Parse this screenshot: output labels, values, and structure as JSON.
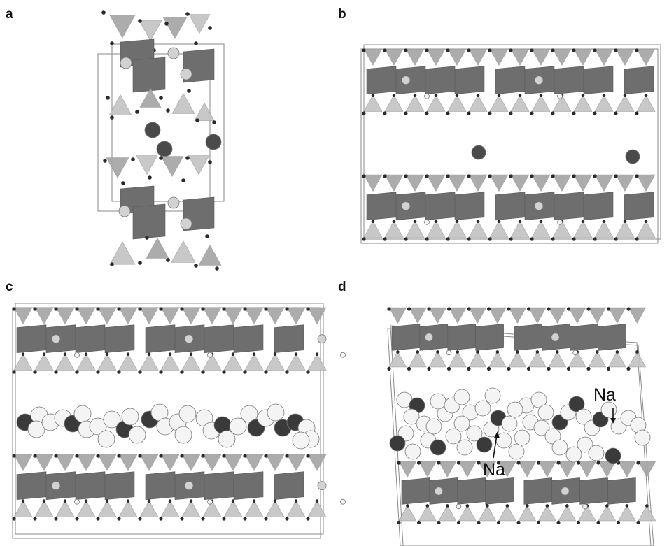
{
  "panels": {
    "a": {
      "letter": "a"
    },
    "b": {
      "letter": "b"
    },
    "c": {
      "letter": "c"
    },
    "d": {
      "letter": "d"
    }
  },
  "annotations": {
    "na_upper": "Na",
    "na_lower": "Na"
  },
  "colors": {
    "tetrahedron_light": "#c4c4c4",
    "tetrahedron_mid": "#a6a6a6",
    "octahedron": "#6e6e6e",
    "oxygen": "#2a2a2a",
    "cation_light": "#d2d2d2",
    "cation_dark": "#4a4a4a",
    "cell_edge": "#8a8a8a",
    "atom_white": "#f4f4f4",
    "atom_dark": "#3a3a3a"
  }
}
